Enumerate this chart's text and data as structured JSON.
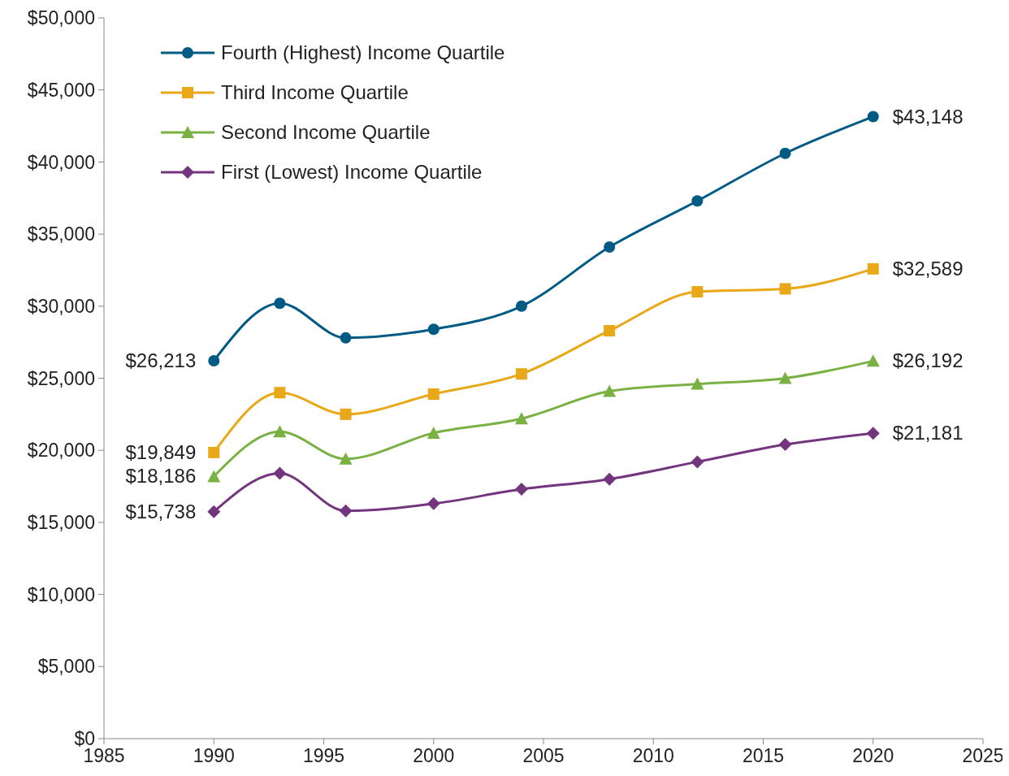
{
  "chart_data": {
    "type": "line",
    "x": [
      1990,
      1993,
      1996,
      2000,
      2004,
      2008,
      2012,
      2016,
      2020
    ],
    "xlim": [
      1985,
      2025
    ],
    "xticks": [
      1985,
      1990,
      1995,
      2000,
      2005,
      2010,
      2015,
      2020,
      2025
    ],
    "ylim": [
      0,
      50000
    ],
    "yticks": [
      {
        "value": 0,
        "label": "$0"
      },
      {
        "value": 5000,
        "label": "$5,000"
      },
      {
        "value": 10000,
        "label": "$10,000"
      },
      {
        "value": 15000,
        "label": "$15,000"
      },
      {
        "value": 20000,
        "label": "$20,000"
      },
      {
        "value": 25000,
        "label": "$25,000"
      },
      {
        "value": 30000,
        "label": "$30,000"
      },
      {
        "value": 35000,
        "label": "$35,000"
      },
      {
        "value": 40000,
        "label": "$40,000"
      },
      {
        "value": 45000,
        "label": "$45,000"
      },
      {
        "value": 50000,
        "label": "$50,000"
      }
    ],
    "grid": false,
    "legend": "top left",
    "line_style": "solid",
    "series": [
      {
        "name": "Fourth (Highest) Income Quartile",
        "color": "#005b84",
        "marker": "circle",
        "values": [
          26213,
          30200,
          27800,
          28400,
          30000,
          34100,
          37300,
          40600,
          43148
        ],
        "value_labels": [
          "$26,213",
          null,
          null,
          null,
          null,
          null,
          null,
          null,
          "$43,148"
        ]
      },
      {
        "name": "Third Income Quartile",
        "color": "#e8a817",
        "marker": "square",
        "values": [
          19849,
          24000,
          22500,
          23900,
          25300,
          28300,
          31000,
          31200,
          32589
        ],
        "value_labels": [
          "$19,849",
          null,
          null,
          null,
          null,
          null,
          null,
          null,
          "$32,589"
        ]
      },
      {
        "name": "Second Income Quartile",
        "color": "#79b143",
        "marker": "triangle",
        "values": [
          18186,
          21300,
          19400,
          21200,
          22200,
          24100,
          24600,
          25000,
          26192
        ],
        "value_labels": [
          "$18,186",
          null,
          null,
          null,
          null,
          null,
          null,
          null,
          "$26,192"
        ]
      },
      {
        "name": "First (Lowest) Income Quartile",
        "color": "#74357f",
        "marker": "diamond",
        "values": [
          15738,
          18400,
          15800,
          16300,
          17300,
          18000,
          19200,
          20400,
          21181
        ],
        "value_labels": [
          "$15,738",
          null,
          null,
          null,
          null,
          null,
          null,
          null,
          "$21,181"
        ]
      }
    ]
  }
}
